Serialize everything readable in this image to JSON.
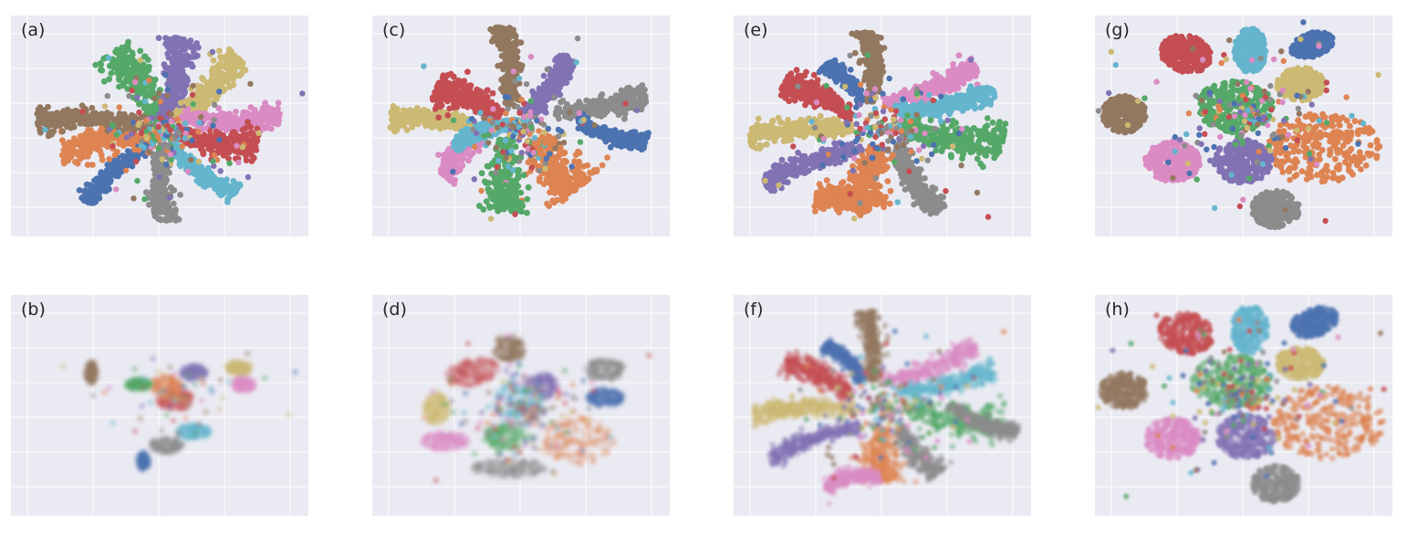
{
  "chart_data": [
    {
      "type": "scatter",
      "title": "(a)",
      "grid": true,
      "render": {
        "blur": 0,
        "pointOpacity": 1.0
      }
    },
    {
      "type": "scatter",
      "title": "(b)",
      "grid": true,
      "render": {
        "blur": 2,
        "pointOpacity": 0.25
      }
    },
    {
      "type": "scatter",
      "title": "(c)",
      "grid": true,
      "render": {
        "blur": 0,
        "pointOpacity": 1.0
      }
    },
    {
      "type": "scatter",
      "title": "(d)",
      "grid": true,
      "render": {
        "blur": 2,
        "pointOpacity": 0.3
      }
    },
    {
      "type": "scatter",
      "title": "(e)",
      "grid": true,
      "render": {
        "blur": 0,
        "pointOpacity": 1.0
      }
    },
    {
      "type": "scatter",
      "title": "(f)",
      "grid": true,
      "render": {
        "blur": 1.5,
        "pointOpacity": 0.45
      }
    },
    {
      "type": "scatter",
      "title": "(g)",
      "grid": true,
      "render": {
        "blur": 0,
        "pointOpacity": 1.0
      }
    },
    {
      "type": "scatter",
      "title": "(h)",
      "grid": true,
      "render": {
        "blur": 1.2,
        "pointOpacity": 0.55
      }
    }
  ],
  "colors": {
    "blue": "#4c72b0",
    "orange": "#dd8452",
    "green": "#55a868",
    "red": "#c44e52",
    "purple": "#8172b3",
    "brown": "#937860",
    "pink": "#da8bc3",
    "gray": "#8c8c8c",
    "olive": "#ccb974",
    "cyan": "#64b5cd"
  }
}
